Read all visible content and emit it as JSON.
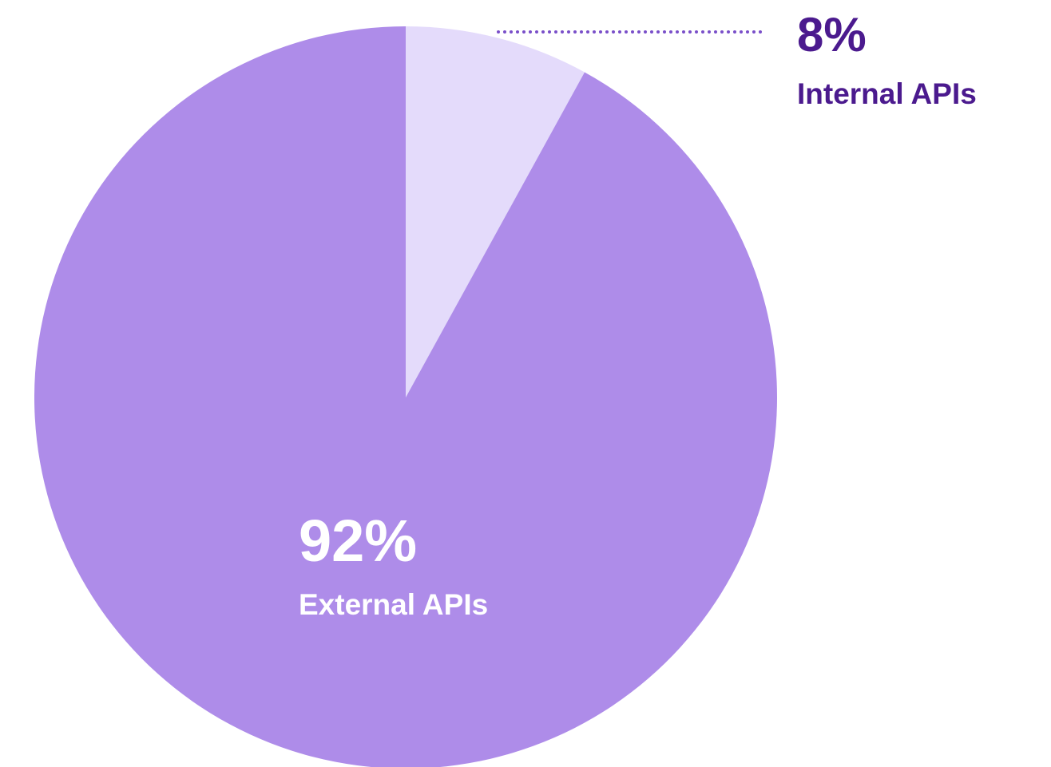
{
  "chart_data": {
    "type": "pie",
    "categories": [
      "Internal APIs",
      "External APIs"
    ],
    "values": [
      8,
      92
    ],
    "value_labels": [
      "8%",
      "92%"
    ],
    "colors": [
      "#e4dbfb",
      "#ae8ce9"
    ]
  }
}
